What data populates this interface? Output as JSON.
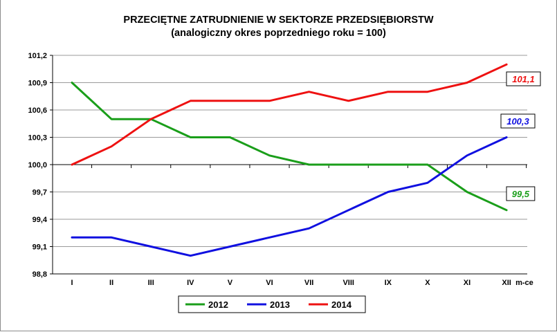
{
  "chart_data": {
    "type": "line",
    "title": "PRZECIĘTNE ZATRUDNIENIE W SEKTORZE PRZEDSIĘBIORSTW",
    "subtitle": "(analogiczny okres poprzedniego roku = 100)",
    "xlabel": "m-ce",
    "ylabel": "",
    "categories": [
      "I",
      "II",
      "III",
      "IV",
      "V",
      "VI",
      "VII",
      "VIII",
      "IX",
      "X",
      "XI",
      "XII"
    ],
    "ylim": [
      98.8,
      101.2
    ],
    "yticks": [
      "98,8",
      "99,1",
      "99,4",
      "99,7",
      "100,0",
      "100,3",
      "100,6",
      "100,9",
      "101,2"
    ],
    "ytick_values": [
      98.8,
      99.1,
      99.4,
      99.7,
      100.0,
      100.3,
      100.6,
      100.9,
      101.2
    ],
    "grid": true,
    "legend_position": "bottom-center",
    "series": [
      {
        "name": "2012",
        "color": "#1a9e1a",
        "values": [
          100.9,
          100.5,
          100.5,
          100.3,
          100.3,
          100.1,
          100.0,
          100.0,
          100.0,
          100.0,
          99.7,
          99.5
        ],
        "end_label": "99,5"
      },
      {
        "name": "2013",
        "color": "#1010e0",
        "values": [
          99.2,
          99.2,
          99.1,
          99.0,
          99.1,
          99.2,
          99.3,
          99.5,
          99.7,
          99.8,
          100.1,
          100.3
        ],
        "end_label": "100,3"
      },
      {
        "name": "2014",
        "color": "#ee1111",
        "values": [
          100.0,
          100.2,
          100.5,
          100.7,
          100.7,
          100.7,
          100.8,
          100.7,
          100.8,
          100.8,
          100.9,
          101.1
        ],
        "end_label": "101,1"
      }
    ]
  }
}
